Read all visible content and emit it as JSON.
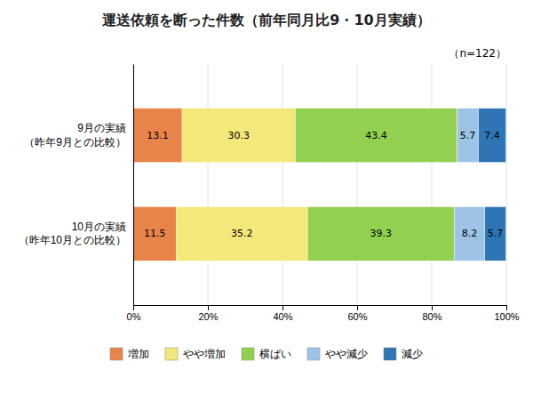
{
  "chart_data": {
    "type": "bar",
    "orientation": "horizontal",
    "stacked": true,
    "title": "運送依頼を断った件数（前年同月比9・10月実績）",
    "annotations": [
      "（n=122）"
    ],
    "categories": [
      "9月の実績\n（昨年9月との比較）",
      "10月の実績\n（昨年10月との比較）"
    ],
    "series": [
      {
        "name": "増加",
        "values": [
          13.1,
          11.5
        ],
        "color": "#E8834A"
      },
      {
        "name": "やや増加",
        "values": [
          30.3,
          35.2
        ],
        "color": "#F5E87A"
      },
      {
        "name": "横ばい",
        "values": [
          43.4,
          39.3
        ],
        "color": "#92D050"
      },
      {
        "name": "やや減少",
        "values": [
          5.7,
          8.2
        ],
        "color": "#9DC3E6"
      },
      {
        "name": "減少",
        "values": [
          7.4,
          5.7
        ],
        "color": "#2E75B6"
      }
    ],
    "xlim": [
      0,
      100
    ],
    "xticks": [
      {
        "value": 0,
        "label": "0%"
      },
      {
        "value": 20,
        "label": "20%"
      },
      {
        "value": 40,
        "label": "40%"
      },
      {
        "value": 60,
        "label": "60%"
      },
      {
        "value": 80,
        "label": "80%"
      },
      {
        "value": 100,
        "label": "100%"
      }
    ],
    "grid": true,
    "legend": "bottom",
    "data_labels": true
  }
}
